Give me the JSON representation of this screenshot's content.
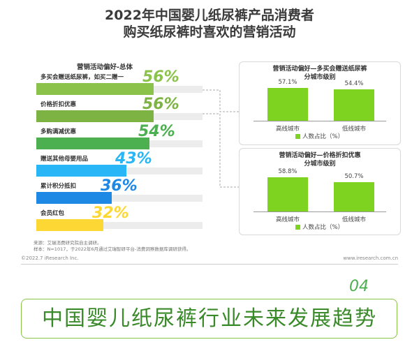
{
  "title_line1": "2022年中国婴儿纸尿裤产品消费者",
  "title_line2": "购买纸尿裤时喜欢的营销活动",
  "chart_data": [
    {
      "type": "bar",
      "title": "营销活动偏好-总体",
      "categories": [
        "多买会赠送纸尿裤，如买二赠一",
        "价格折扣优惠",
        "多购满减优惠",
        "赠送其他母婴用品",
        "累计积分抵扣",
        "会员红包"
      ],
      "values": [
        56,
        56,
        54,
        43,
        36,
        32
      ],
      "value_labels": [
        "56%",
        "56%",
        "54%",
        "43%",
        "36%",
        "32%"
      ],
      "colors": [
        "#8bc34a",
        "#7cb342",
        "#4caf50",
        "#29b6f6",
        "#1e88e5",
        "#fdd835"
      ],
      "value_colors": [
        "#8bc34a",
        "#7cb342",
        "#4caf50",
        "#29b6f6",
        "#1e88e5",
        "#fdd835"
      ],
      "ylim": [
        0,
        100
      ]
    },
    {
      "type": "bar",
      "title_line1": "营销活动偏好—多买会赠送纸尿裤",
      "title_line2": "分城市级别",
      "categories": [
        "高线城市",
        "低线城市"
      ],
      "values": [
        57.1,
        54.4
      ],
      "value_labels": [
        "57.1%",
        "54.4%"
      ],
      "legend": "人数占比（%）",
      "ylim": [
        0,
        70
      ]
    },
    {
      "type": "bar",
      "title_line1": "营销活动偏好—价格折扣优惠",
      "title_line2": "分城市级别",
      "categories": [
        "高线城市",
        "低线城市"
      ],
      "values": [
        58.8,
        50.7
      ],
      "value_labels": [
        "58.8%",
        "50.7%"
      ],
      "legend": "人数占比（%）",
      "ylim": [
        0,
        70
      ]
    }
  ],
  "source_line1": "来源：艾瑞消费研究院自主调研。",
  "source_line2": "样本：N=1017，于2022年6月通过艾瑞智研平台-消费洞察数据库调研获得。",
  "footer_left": "©2022.7 iResearch Inc.",
  "footer_right": "www.iresearch.com.cn",
  "section_number": "04",
  "banner_text": "中国婴儿纸尿裤行业未来发展趋势",
  "colors": {
    "accent_green": "#7ed321",
    "banner_green": "#3a8a2a"
  }
}
